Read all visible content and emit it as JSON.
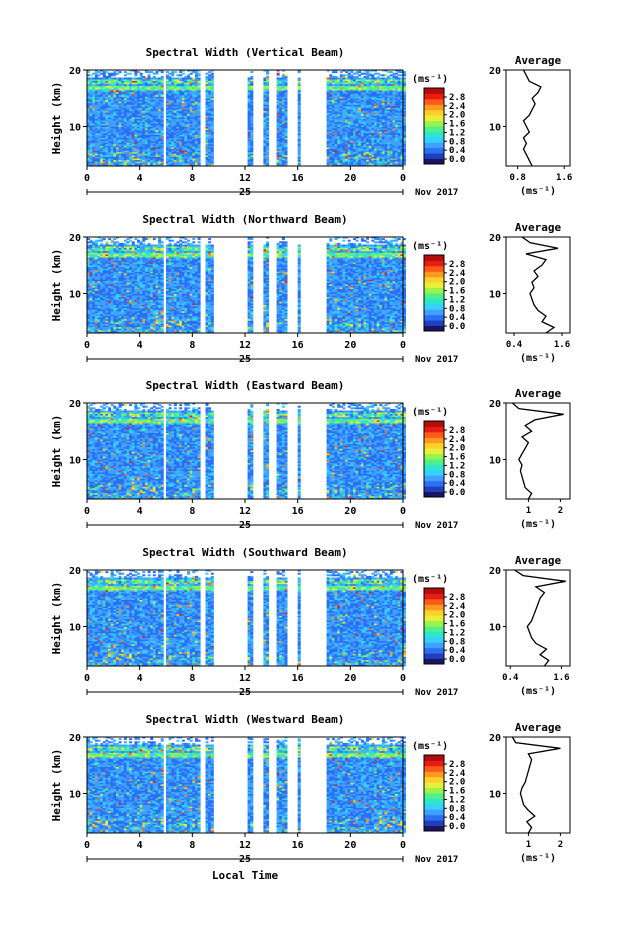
{
  "x_axis_label": "Local Time",
  "colorbar": {
    "unit": "(ms⁻¹)",
    "ticks": [
      "0.0",
      "0.4",
      "0.8",
      "1.2",
      "1.6",
      "2.0",
      "2.4",
      "2.8"
    ],
    "colors": [
      "#1b1464",
      "#1f3fbf",
      "#2b6ff5",
      "#3fa0ff",
      "#35d0ff",
      "#2ee6c9",
      "#4ff08a",
      "#9bf24a",
      "#e8ef3a",
      "#ffd02a",
      "#ff9a1f",
      "#ff5a18",
      "#e81c16",
      "#b30d0d"
    ]
  },
  "chart_data": [
    {
      "type": "heatmap",
      "title": "Spectral Width (Vertical Beam)",
      "ylabel": "Height (km)",
      "xlim": [
        0,
        24
      ],
      "ylim": [
        3,
        20
      ],
      "x_ticks": [
        "0",
        "4",
        "8",
        "12",
        "16",
        "20",
        "0"
      ],
      "y_ticks": [
        "10",
        "20"
      ],
      "date_day": "25",
      "date_label": "Nov 2017",
      "profile": {
        "title": "Average",
        "xlabel": "(ms⁻¹)",
        "x_ticks": [
          "0.8",
          "1.6"
        ],
        "x_tick_values": [
          0.8,
          1.6
        ],
        "xlim": [
          0.6,
          1.7
        ],
        "y_ticks": [
          "10",
          "20"
        ],
        "heights": [
          3,
          4,
          5,
          6,
          7,
          8,
          9,
          10,
          11,
          12,
          13,
          14,
          15,
          16,
          17,
          18,
          19,
          20
        ],
        "values": [
          1.05,
          1.0,
          0.95,
          0.9,
          0.95,
          0.9,
          1.0,
          0.95,
          0.9,
          1.0,
          1.05,
          1.1,
          1.05,
          1.15,
          1.2,
          1.0,
          0.95,
          0.9
        ]
      }
    },
    {
      "type": "heatmap",
      "title": "Spectral Width (Northward Beam)",
      "ylabel": "Height (km)",
      "xlim": [
        0,
        24
      ],
      "ylim": [
        3,
        20
      ],
      "x_ticks": [
        "0",
        "4",
        "8",
        "12",
        "16",
        "20",
        "0"
      ],
      "y_ticks": [
        "10",
        "20"
      ],
      "date_day": "25",
      "date_label": "Nov 2017",
      "profile": {
        "title": "Average",
        "xlabel": "(ms⁻¹)",
        "x_ticks": [
          "0.4",
          "1.6"
        ],
        "x_tick_values": [
          0.4,
          1.6
        ],
        "xlim": [
          0.2,
          1.8
        ],
        "y_ticks": [
          "10",
          "20"
        ],
        "heights": [
          3,
          4,
          5,
          6,
          7,
          8,
          9,
          10,
          11,
          12,
          13,
          14,
          15,
          16,
          17,
          18,
          19,
          20
        ],
        "values": [
          1.2,
          1.4,
          1.1,
          1.2,
          1.0,
          0.9,
          0.85,
          0.8,
          0.9,
          0.85,
          1.0,
          0.9,
          1.1,
          1.2,
          0.7,
          1.5,
          0.8,
          0.6
        ]
      }
    },
    {
      "type": "heatmap",
      "title": "Spectral Width (Eastward Beam)",
      "ylabel": "Height (km)",
      "xlim": [
        0,
        24
      ],
      "ylim": [
        3,
        20
      ],
      "x_ticks": [
        "0",
        "4",
        "8",
        "12",
        "16",
        "20",
        "0"
      ],
      "y_ticks": [
        "10",
        "20"
      ],
      "date_day": "25",
      "date_label": "Nov 2017",
      "profile": {
        "title": "Average",
        "xlabel": "(ms⁻¹)",
        "x_ticks": [
          "1",
          "2"
        ],
        "x_tick_values": [
          1,
          2
        ],
        "xlim": [
          0.3,
          2.3
        ],
        "y_ticks": [
          "10",
          "20"
        ],
        "heights": [
          3,
          4,
          5,
          6,
          7,
          8,
          9,
          10,
          11,
          12,
          13,
          14,
          15,
          16,
          17,
          18,
          19,
          20
        ],
        "values": [
          1.0,
          1.1,
          0.9,
          0.85,
          0.8,
          0.75,
          0.8,
          0.7,
          0.8,
          0.9,
          1.0,
          0.8,
          1.1,
          0.9,
          1.2,
          2.1,
          0.7,
          0.5
        ]
      }
    },
    {
      "type": "heatmap",
      "title": "Spectral Width (Southward Beam)",
      "ylabel": "Height (km)",
      "xlim": [
        0,
        24
      ],
      "ylim": [
        3,
        20
      ],
      "x_ticks": [
        "0",
        "4",
        "8",
        "12",
        "16",
        "20",
        "0"
      ],
      "y_ticks": [
        "10",
        "20"
      ],
      "date_day": "25",
      "date_label": "Nov 2017",
      "profile": {
        "title": "Average",
        "xlabel": "(ms⁻¹)",
        "x_ticks": [
          "0.4",
          "1.6"
        ],
        "x_tick_values": [
          0.4,
          1.6
        ],
        "xlim": [
          0.3,
          1.8
        ],
        "y_ticks": [
          "10",
          "20"
        ],
        "heights": [
          3,
          4,
          5,
          6,
          7,
          8,
          9,
          10,
          11,
          12,
          13,
          14,
          15,
          16,
          17,
          18,
          19,
          20
        ],
        "values": [
          1.2,
          1.3,
          1.1,
          1.25,
          1.0,
          0.9,
          0.85,
          0.8,
          0.9,
          0.95,
          1.0,
          1.05,
          1.1,
          1.2,
          1.0,
          1.7,
          0.7,
          0.5
        ]
      }
    },
    {
      "type": "heatmap",
      "title": "Spectral Width (Westward Beam)",
      "ylabel": "Height (km)",
      "xlim": [
        0,
        24
      ],
      "ylim": [
        3,
        20
      ],
      "x_ticks": [
        "0",
        "4",
        "8",
        "12",
        "16",
        "20",
        "0"
      ],
      "y_ticks": [
        "10",
        "20"
      ],
      "date_day": "25",
      "date_label": "Nov 2017",
      "profile": {
        "title": "Average",
        "xlabel": "(ms⁻¹)",
        "x_ticks": [
          "1",
          "2"
        ],
        "x_tick_values": [
          1,
          2
        ],
        "xlim": [
          0.3,
          2.3
        ],
        "y_ticks": [
          "10",
          "20"
        ],
        "heights": [
          3,
          4,
          5,
          6,
          7,
          8,
          9,
          10,
          11,
          12,
          13,
          14,
          15,
          16,
          17,
          18,
          19,
          20
        ],
        "values": [
          1.0,
          1.1,
          0.95,
          1.2,
          1.0,
          0.85,
          0.8,
          0.75,
          0.8,
          0.9,
          0.95,
          1.0,
          1.05,
          1.1,
          1.0,
          2.0,
          0.6,
          0.5
        ]
      }
    }
  ]
}
